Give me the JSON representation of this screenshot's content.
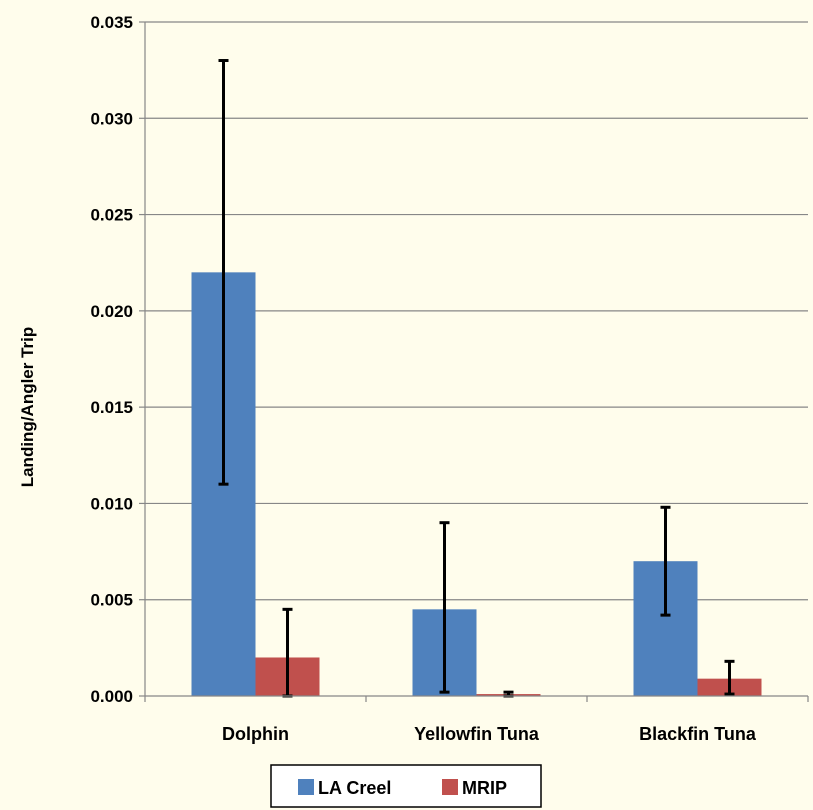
{
  "chart_data": {
    "type": "bar",
    "title": "",
    "xlabel": "",
    "ylabel": "Landing/Angler Trip",
    "ylim": [
      0,
      0.035
    ],
    "yticks": [
      "0.000",
      "0.005",
      "0.010",
      "0.015",
      "0.020",
      "0.025",
      "0.030",
      "0.035"
    ],
    "categories": [
      "Dolphin",
      "Yellowfin Tuna",
      "Blackfin Tuna"
    ],
    "grid": true,
    "legend_position": "bottom",
    "series": [
      {
        "name": "LA Creel",
        "color": "#4f81bd",
        "values": [
          0.022,
          0.0045,
          0.007
        ],
        "error_low": [
          0.011,
          0.0002,
          0.0042
        ],
        "error_high": [
          0.033,
          0.009,
          0.0098
        ]
      },
      {
        "name": "MRIP",
        "color": "#c0504d",
        "values": [
          0.002,
          0.0001,
          0.0009
        ],
        "error_low": [
          0.0,
          0.0,
          0.0001
        ],
        "error_high": [
          0.0045,
          0.0002,
          0.0018
        ]
      }
    ]
  },
  "colors": {
    "background": "#fffdec",
    "gridline": "#878787",
    "axis": "#878787",
    "error_bar": "#000000"
  }
}
